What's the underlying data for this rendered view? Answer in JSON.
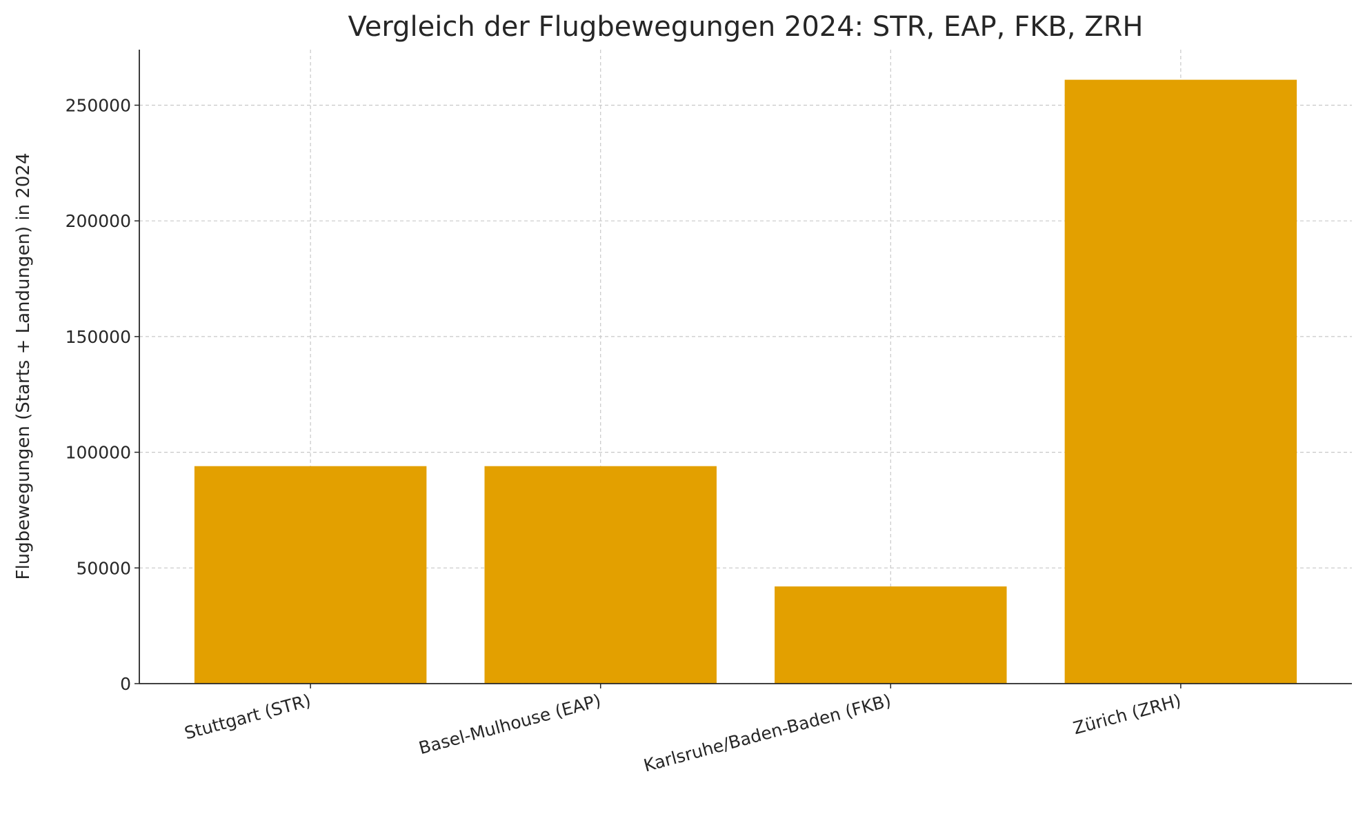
{
  "chart_data": {
    "type": "bar",
    "title": "Vergleich der Flugbewegungen 2024: STR, EAP, FKB, ZRH",
    "y_label": "Flugbewegungen (Starts + Landungen) in 2024",
    "categories": [
      "Stuttgart (STR)",
      "Basel-Mulhouse (EAP)",
      "Karlsruhe/Baden-Baden (FKB)",
      "Zürich (ZRH)"
    ],
    "values": [
      94000,
      94000,
      42000,
      261000
    ],
    "color": "#e3a000",
    "ylim": [
      0,
      274000
    ],
    "yticks": [
      0,
      50000,
      100000,
      150000,
      200000,
      250000
    ],
    "grid": true
  }
}
